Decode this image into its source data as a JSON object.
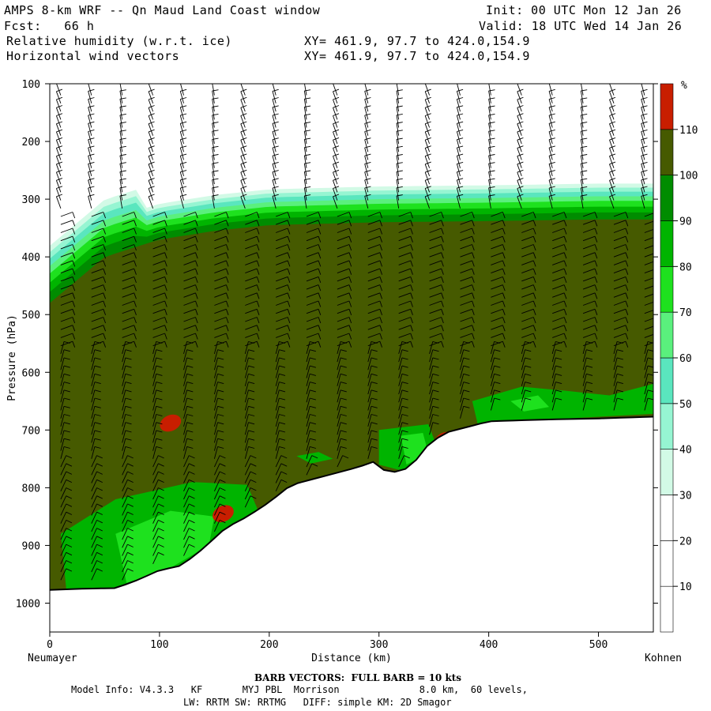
{
  "header": {
    "title": "AMPS 8-km WRF -- Qn Maud Land Coast window",
    "fcst": "Fcst:   66 h",
    "init": "Init: 00 UTC Mon 12 Jan 26",
    "valid": "Valid: 18 UTC Wed 14 Jan 26",
    "field1": "Relative humidity (w.r.t. ice)",
    "field2": "Horizontal wind vectors",
    "xy1": "XY= 461.9, 97.7 to 424.0,154.9",
    "xy2": "XY= 461.9, 97.7 to 424.0,154.9"
  },
  "chart_data": {
    "type": "cross-section",
    "ylabel": "Pressure (hPa)",
    "xlabel": "Distance (km)",
    "x_left_label": "Neumayer",
    "x_right_label": "Kohnen",
    "xlim": [
      0,
      550
    ],
    "ylim": [
      1050,
      100
    ],
    "x_ticks": [
      0,
      100,
      200,
      300,
      400,
      500
    ],
    "y_ticks": [
      100,
      200,
      300,
      400,
      500,
      600,
      700,
      800,
      900,
      1000
    ],
    "colorbar": {
      "unit": "%",
      "levels": [
        10,
        20,
        30,
        40,
        50,
        60,
        70,
        80,
        90,
        100,
        110
      ],
      "colors": [
        "#ffffff",
        "#ffffff",
        "#ffffff",
        "#d2fae6",
        "#96f5d2",
        "#5ae6be",
        "#5af07d",
        "#1ee11e",
        "#00b400",
        "#008c00",
        "#465a00",
        "#c81e00"
      ]
    },
    "terrain": {
      "x_km": [
        0,
        30,
        60,
        80,
        100,
        120,
        140,
        160,
        180,
        200,
        220,
        240,
        260,
        280,
        295,
        305,
        320,
        335,
        345,
        360,
        380,
        400,
        450,
        500,
        550
      ],
      "p_hpa": [
        977,
        975,
        974,
        960,
        943,
        935,
        905,
        870,
        850,
        825,
        795,
        785,
        775,
        765,
        755,
        770,
        774,
        750,
        725,
        705,
        695,
        685,
        682,
        680,
        677
      ]
    },
    "rh_top_boundary": {
      "x_km": [
        0,
        50,
        100,
        150,
        200,
        300,
        400,
        500,
        550
      ],
      "p_hpa": [
        480,
        400,
        370,
        355,
        345,
        340,
        338,
        335,
        335
      ]
    },
    "saturated_patches": [
      {
        "x_km": 110,
        "p_hpa": 688
      },
      {
        "x_km": 158,
        "p_hpa": 845
      },
      {
        "x_km": 360,
        "p_hpa": 718
      }
    ],
    "footer": {
      "barb": "BARB VECTORS:  FULL BARB = 10 kts",
      "model": "Model Info: V4.3.3   KF       MYJ PBL  Morrison              8.0 km,  60 levels,",
      "physics": "LW: RRTM SW: RRTMG   DIFF: simple KM: 2D Smagor"
    }
  }
}
